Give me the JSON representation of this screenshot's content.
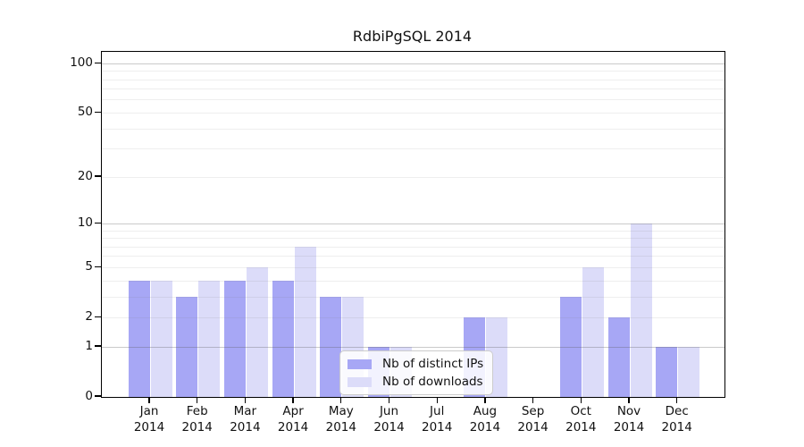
{
  "title": "RdbiPgSQL 2014",
  "colors": {
    "ips": "#a7a7f5",
    "downloads": "#dcdcf9",
    "axis": "#000000",
    "grid_minor": "rgba(120,120,120,0.13)",
    "grid_major": "rgba(90,90,90,0.32)",
    "legend_border": "#cccccc",
    "legend_bg": "rgba(255,255,255,0.85)"
  },
  "legend": {
    "items": [
      {
        "label": "Nb of distinct IPs",
        "series": "ips"
      },
      {
        "label": "Nb of downloads",
        "series": "downloads"
      }
    ]
  },
  "chart_data": {
    "type": "bar",
    "title": "RdbiPgSQL 2014",
    "categories": [
      "Jan 2014",
      "Feb 2014",
      "Mar 2014",
      "Apr 2014",
      "May 2014",
      "Jun 2014",
      "Jul 2014",
      "Aug 2014",
      "Sep 2014",
      "Oct 2014",
      "Nov 2014",
      "Dec 2014"
    ],
    "x_tick_line1": [
      "Jan",
      "Feb",
      "Mar",
      "Apr",
      "May",
      "Jun",
      "Jul",
      "Aug",
      "Sep",
      "Oct",
      "Nov",
      "Dec"
    ],
    "x_tick_line2": "2014",
    "series": [
      {
        "name": "Nb of distinct IPs",
        "color_key": "ips",
        "values": [
          4,
          3,
          4,
          4,
          3,
          1,
          0,
          2,
          0,
          3,
          2,
          1
        ]
      },
      {
        "name": "Nb of downloads",
        "color_key": "downloads",
        "values": [
          4,
          4,
          5,
          7,
          3,
          1,
          0,
          2,
          0,
          5,
          10,
          1
        ]
      }
    ],
    "y_ticks": [
      0,
      1,
      2,
      5,
      10,
      20,
      50,
      100
    ],
    "y_scale": "log1p",
    "y_range": [
      0,
      118
    ],
    "grid": true,
    "grid_minor_values": [
      2,
      3,
      4,
      5,
      6,
      7,
      8,
      9,
      20,
      30,
      40,
      50,
      60,
      70,
      80,
      90
    ],
    "grid_major_values": [
      1,
      10,
      100
    ],
    "legend_position": "lower-center",
    "grid_above_bars": true
  }
}
